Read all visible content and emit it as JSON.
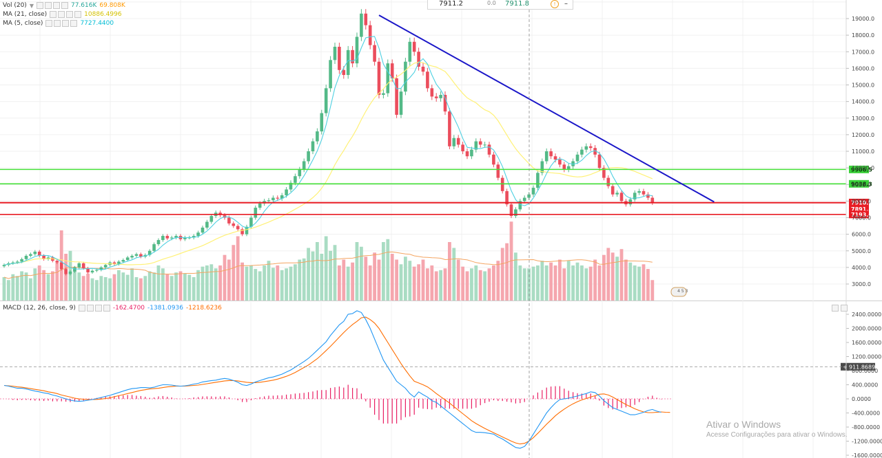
{
  "legends": {
    "vol": {
      "label": "Vol (20)",
      "v1": "77.616K",
      "v1_color": "#26a69a",
      "v2": "69.808K",
      "v2_color": "#ff9800"
    },
    "ma21": {
      "label": "MA (21, close)",
      "value": "10886.4996",
      "color": "#ffeb3b"
    },
    "ma5": {
      "label": "MA (5, close)",
      "value": "7727.4400",
      "color": "#00bcd4"
    },
    "macd": {
      "label": "MACD (12, 26, close, 9)",
      "hist": "-162.4700",
      "macd": "-1381.0936",
      "signal": "-1218.6236",
      "hist_color": "#e91e63",
      "macd_color": "#2196f3",
      "signal_color": "#ff6d00"
    }
  },
  "tooltip": {
    "a": "7911.2",
    "b": "0.0",
    "c": "7911.8",
    "d": "–"
  },
  "watermark": {
    "title": "Ativar o Windows",
    "subtitle": "Acesse Configurações para ativar o Windows."
  },
  "colors": {
    "up": "#53b987",
    "down": "#eb4d5c",
    "vol_up": "#a9dcc3",
    "vol_down": "#f5a6ae",
    "ma21": "#fff176",
    "ma5": "#4dd0e1",
    "trendline": "#1a16c8",
    "support_green": "#44e038",
    "support_red": "#e81c24",
    "macd": "#2196f3",
    "signal": "#ff6d00",
    "hist": "#e91e63"
  },
  "icon": "flag-icon",
  "chart_data": [
    {
      "type": "candlestick",
      "pane": "price",
      "y_scale": {
        "min": 2000,
        "max": 20000,
        "ticks": [
          3000,
          4000,
          5000,
          6000,
          7000,
          8000,
          9000,
          10000,
          11000,
          12000,
          13000,
          14000,
          15000,
          16000,
          17000,
          18000,
          19000,
          20000
        ]
      },
      "y_tick_labels": [
        "3000.0",
        "4000.0",
        "5000.0",
        "6000.0",
        "7000.0",
        "8000.0",
        "9000.0",
        "10000.0",
        "11000.0",
        "12000.0",
        "13000.0",
        "14000.0",
        "15000.0",
        "16000.0",
        "17000.0",
        "18000.0",
        "19000.0"
      ],
      "closes": [
        4150,
        4250,
        4300,
        4350,
        4500,
        4700,
        4800,
        4950,
        4700,
        4500,
        4600,
        4400,
        4300,
        3900,
        3600,
        3750,
        4000,
        4250,
        3950,
        3700,
        3800,
        3850,
        4000,
        4150,
        4300,
        4200,
        4350,
        4450,
        4600,
        4700,
        4800,
        4650,
        4750,
        5000,
        5400,
        5650,
        5900,
        5750,
        5800,
        5900,
        5700,
        5800,
        5800,
        5900,
        6100,
        6400,
        6750,
        7100,
        7300,
        7150,
        7000,
        6650,
        6500,
        6300,
        6000,
        6450,
        7000,
        7600,
        7850,
        8000,
        8050,
        8200,
        8150,
        8350,
        8700,
        9100,
        9500,
        9900,
        10400,
        11000,
        11600,
        12200,
        13300,
        14800,
        16500,
        17300,
        15900,
        15600,
        17100,
        16300,
        17900,
        19300,
        18600,
        17400,
        16400,
        14400,
        14500,
        16300,
        15400,
        13200,
        14600,
        16400,
        17600,
        17000,
        16100,
        15800,
        14800,
        14300,
        14200,
        14400,
        13400,
        11300,
        11800,
        11400,
        11000,
        10700,
        11100,
        11600,
        11400,
        11400,
        10800,
        10200,
        9400,
        8600,
        7800,
        7100,
        7500,
        8000,
        8200,
        8400,
        8800,
        9700,
        10400,
        11000,
        10700,
        10500,
        10200,
        9900,
        10100,
        10400,
        10800,
        11100,
        11300,
        11200,
        10800,
        10000,
        9400,
        8900,
        8400,
        8500,
        8000,
        7800,
        8100,
        8500,
        8600,
        8400,
        8200,
        7900
      ],
      "last_price": 7910.9,
      "ma5_label": "MA (5, close)",
      "ma21_label": "MA (21, close)",
      "trendline": [
        {
          "bar": 85,
          "price": 19200
        },
        {
          "bar": 161,
          "price": 7950
        }
      ],
      "horizontal_levels": [
        {
          "price": 9906.5,
          "label": "9906.5",
          "color": "#44e038"
        },
        {
          "price": 9038.3,
          "label": "9038.3",
          "color": "#44e038"
        },
        {
          "price": 7910.9,
          "label": "7910.9",
          "color": "#e81c24"
        },
        {
          "price": 7891.3,
          "label": "7891.3",
          "color": "#e81c24"
        },
        {
          "price": 7193.6,
          "label": "7193.6",
          "color": "#e81c24"
        }
      ],
      "volume_k": [
        40,
        35,
        45,
        42,
        50,
        48,
        38,
        55,
        60,
        52,
        45,
        50,
        65,
        120,
        80,
        85,
        58,
        48,
        42,
        46,
        38,
        35,
        42,
        40,
        38,
        45,
        52,
        48,
        44,
        55,
        40,
        38,
        42,
        50,
        48,
        60,
        55,
        45,
        42,
        48,
        50,
        46,
        44,
        40,
        52,
        58,
        60,
        62,
        55,
        60,
        78,
        70,
        95,
        110,
        65,
        58,
        60,
        54,
        50,
        60,
        68,
        56,
        60,
        52,
        55,
        58,
        62,
        70,
        72,
        90,
        84,
        100,
        80,
        110,
        85,
        95,
        60,
        70,
        58,
        65,
        100,
        92,
        75,
        60,
        82,
        70,
        100,
        105,
        80,
        70,
        62,
        75,
        68,
        58,
        62,
        70,
        55,
        60,
        50,
        52,
        55,
        100,
        90,
        70,
        58,
        50,
        55,
        60,
        52,
        50,
        55,
        60,
        68,
        90,
        98,
        135,
        82,
        60,
        55,
        55,
        58,
        60,
        68,
        60,
        65,
        60,
        70,
        55,
        68,
        60,
        65,
        60,
        55,
        58,
        70,
        60,
        78,
        90,
        82,
        75,
        88,
        70,
        65,
        60,
        58,
        62,
        54,
        35
      ],
      "volume_scale_note": "Vol (20)"
    },
    {
      "type": "line",
      "pane": "macd",
      "title": "MACD (12, 26, close, 9)",
      "y_tick_labels": [
        "2400.0000",
        "2000.0000",
        "1600.0000",
        "1200.0000",
        "800.0000",
        "400.0000",
        "0.0000",
        "-400.0000",
        "-800.0000",
        "-1200.0000",
        "-1600.0000"
      ],
      "y_scale": {
        "min": -1600,
        "max": 2400
      },
      "current_label": "911.8689",
      "current_value": 911.8689,
      "series": [
        {
          "name": "MACD",
          "values": [
            380,
            360,
            330,
            300,
            300,
            280,
            250,
            220,
            200,
            170,
            150,
            110,
            80,
            40,
            0,
            -40,
            -60,
            -70,
            -60,
            -40,
            -20,
            10,
            40,
            70,
            100,
            140,
            180,
            220,
            260,
            290,
            300,
            320,
            320,
            310,
            330,
            370,
            400,
            400,
            390,
            370,
            360,
            370,
            390,
            420,
            440,
            480,
            500,
            520,
            530,
            560,
            580,
            560,
            520,
            470,
            400,
            380,
            420,
            480,
            520,
            560,
            600,
            620,
            660,
            700,
            760,
            820,
            900,
            980,
            1060,
            1150,
            1260,
            1380,
            1500,
            1620,
            1800,
            1950,
            2100,
            2200,
            2400,
            2420,
            2500,
            2450,
            2250,
            2000,
            1700,
            1400,
            1100,
            900,
            700,
            500,
            400,
            300,
            150,
            50,
            200,
            120,
            50,
            -50,
            -100,
            -200,
            -300,
            -400,
            -500,
            -600,
            -700,
            -800,
            -900,
            -950,
            -950,
            -960,
            -980,
            -1000,
            -1080,
            -1140,
            -1220,
            -1300,
            -1380,
            -1400,
            -1350,
            -1200,
            -1000,
            -800,
            -600,
            -400,
            -250,
            -120,
            -20,
            0,
            20,
            50,
            80,
            120,
            150,
            200,
            180,
            80,
            -50,
            -150,
            -250,
            -300,
            -350,
            -400,
            -450,
            -450,
            -420,
            -380,
            -330,
            -300,
            -350,
            -380
          ],
          "color": "#2196f3"
        },
        {
          "name": "Signal",
          "values": [
            380,
            370,
            360,
            340,
            330,
            310,
            290,
            270,
            250,
            230,
            200,
            180,
            150,
            110,
            80,
            50,
            20,
            0,
            -10,
            -20,
            -20,
            -15,
            -5,
            10,
            30,
            60,
            90,
            120,
            150,
            180,
            210,
            240,
            260,
            280,
            290,
            300,
            320,
            340,
            350,
            360,
            360,
            360,
            370,
            380,
            390,
            410,
            430,
            450,
            470,
            490,
            510,
            520,
            520,
            510,
            490,
            470,
            460,
            460,
            470,
            490,
            510,
            530,
            560,
            600,
            640,
            690,
            750,
            820,
            890,
            960,
            1050,
            1140,
            1250,
            1370,
            1490,
            1620,
            1750,
            1880,
            2000,
            2110,
            2200,
            2300,
            2320,
            2250,
            2150,
            2000,
            1800,
            1600,
            1400,
            1200,
            1000,
            820,
            650,
            500,
            450,
            400,
            340,
            250,
            150,
            60,
            -30,
            -120,
            -220,
            -320,
            -420,
            -520,
            -620,
            -700,
            -770,
            -840,
            -900,
            -960,
            -1020,
            -1080,
            -1140,
            -1200,
            -1250,
            -1280,
            -1260,
            -1200,
            -1100,
            -980,
            -850,
            -720,
            -600,
            -480,
            -380,
            -290,
            -210,
            -140,
            -80,
            -30,
            10,
            50,
            90,
            130,
            140,
            110,
            50,
            -20,
            -90,
            -160,
            -220,
            -280,
            -330,
            -370,
            -390,
            -390,
            -380,
            -370,
            -380,
            -385
          ],
          "color": "#ff6d00"
        }
      ]
    }
  ]
}
